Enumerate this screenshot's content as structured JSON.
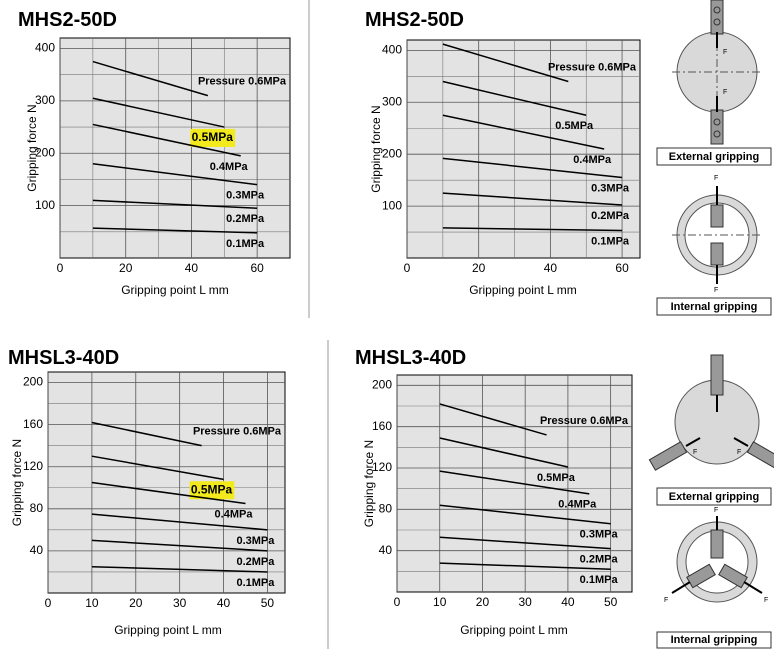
{
  "chart_data": [
    {
      "type": "line",
      "title": "MHS2-50D",
      "xlabel": "Gripping point  L mm",
      "ylabel": "Gripping force  N",
      "xlim": [
        0,
        70
      ],
      "ylim": [
        0,
        420
      ],
      "xticks": [
        0,
        20,
        40,
        60
      ],
      "yticks": [
        100,
        200,
        300,
        400
      ],
      "grid": true,
      "series": [
        {
          "name": "Pressure 0.6MPa",
          "color": "#000000",
          "x": [
            10,
            45
          ],
          "values": [
            375,
            310
          ]
        },
        {
          "name": "0.5MPa",
          "color": "#000000",
          "x": [
            10,
            50
          ],
          "values": [
            305,
            250
          ],
          "highlight": true
        },
        {
          "name": "0.4MPa",
          "color": "#000000",
          "x": [
            10,
            55
          ],
          "values": [
            255,
            195
          ]
        },
        {
          "name": "0.3MPa",
          "color": "#000000",
          "x": [
            10,
            60
          ],
          "values": [
            180,
            140
          ]
        },
        {
          "name": "0.2MPa",
          "color": "#000000",
          "x": [
            10,
            60
          ],
          "values": [
            110,
            95
          ]
        },
        {
          "name": "0.1MPa",
          "color": "#000000",
          "x": [
            10,
            60
          ],
          "values": [
            57,
            48
          ]
        }
      ]
    },
    {
      "type": "line",
      "title": "MHS2-50D",
      "xlabel": "Gripping point  L mm",
      "ylabel": "Gripping force  N",
      "xlim": [
        0,
        65
      ],
      "ylim": [
        0,
        420
      ],
      "xticks": [
        0,
        20,
        40,
        60
      ],
      "yticks": [
        100,
        200,
        300,
        400
      ],
      "grid": true,
      "series": [
        {
          "name": "Pressure 0.6MPa",
          "color": "#000000",
          "x": [
            10,
            45
          ],
          "values": [
            412,
            340
          ]
        },
        {
          "name": "0.5MPa",
          "color": "#000000",
          "x": [
            10,
            50
          ],
          "values": [
            340,
            275
          ]
        },
        {
          "name": "0.4MPa",
          "color": "#000000",
          "x": [
            10,
            55
          ],
          "values": [
            275,
            210
          ]
        },
        {
          "name": "0.3MPa",
          "color": "#000000",
          "x": [
            10,
            60
          ],
          "values": [
            192,
            155
          ]
        },
        {
          "name": "0.2MPa",
          "color": "#000000",
          "x": [
            10,
            60
          ],
          "values": [
            125,
            102
          ]
        },
        {
          "name": "0.1MPa",
          "color": "#000000",
          "x": [
            10,
            60
          ],
          "values": [
            58,
            53
          ]
        }
      ]
    },
    {
      "type": "line",
      "title": "MHSL3-40D",
      "xlabel": "Gripping point  L mm",
      "ylabel": "Gripping force  N",
      "xlim": [
        0,
        54
      ],
      "ylim": [
        0,
        210
      ],
      "xticks": [
        0,
        10,
        20,
        30,
        40,
        50
      ],
      "yticks": [
        40,
        80,
        120,
        160,
        200
      ],
      "grid": true,
      "series": [
        {
          "name": "Pressure 0.6MPa",
          "color": "#000000",
          "x": [
            10,
            35
          ],
          "values": [
            162,
            140
          ]
        },
        {
          "name": "0.5MPa",
          "color": "#000000",
          "x": [
            10,
            40
          ],
          "values": [
            130,
            108
          ],
          "highlight": true
        },
        {
          "name": "0.4MPa",
          "color": "#000000",
          "x": [
            10,
            45
          ],
          "values": [
            105,
            85
          ]
        },
        {
          "name": "0.3MPa",
          "color": "#000000",
          "x": [
            10,
            50
          ],
          "values": [
            75,
            60
          ]
        },
        {
          "name": "0.2MPa",
          "color": "#000000",
          "x": [
            10,
            50
          ],
          "values": [
            50,
            40
          ]
        },
        {
          "name": "0.1MPa",
          "color": "#000000",
          "x": [
            10,
            50
          ],
          "values": [
            25,
            20
          ]
        }
      ]
    },
    {
      "type": "line",
      "title": "MHSL3-40D",
      "xlabel": "Gripping point  L mm",
      "ylabel": "Gripping force  N",
      "xlim": [
        0,
        55
      ],
      "ylim": [
        0,
        210
      ],
      "xticks": [
        0,
        10,
        20,
        30,
        40,
        50
      ],
      "yticks": [
        40,
        80,
        120,
        160,
        200
      ],
      "grid": true,
      "series": [
        {
          "name": "Pressure 0.6MPa",
          "color": "#000000",
          "x": [
            10,
            35
          ],
          "values": [
            182,
            152
          ]
        },
        {
          "name": "0.5MPa",
          "color": "#000000",
          "x": [
            10,
            40
          ],
          "values": [
            149,
            121
          ]
        },
        {
          "name": "0.4MPa",
          "color": "#000000",
          "x": [
            10,
            45
          ],
          "values": [
            117,
            95
          ]
        },
        {
          "name": "0.3MPa",
          "color": "#000000",
          "x": [
            10,
            50
          ],
          "values": [
            84,
            66
          ]
        },
        {
          "name": "0.2MPa",
          "color": "#000000",
          "x": [
            10,
            50
          ],
          "values": [
            53,
            42
          ]
        },
        {
          "name": "0.1MPa",
          "color": "#000000",
          "x": [
            10,
            50
          ],
          "values": [
            28,
            22
          ]
        }
      ]
    }
  ],
  "diagrams": [
    {
      "caption": "External gripping",
      "force_label": "F"
    },
    {
      "caption": "Internal gripping",
      "force_label": "F"
    },
    {
      "caption": "External gripping",
      "force_label": "F"
    },
    {
      "caption": "Internal gripping",
      "force_label": "F"
    }
  ]
}
